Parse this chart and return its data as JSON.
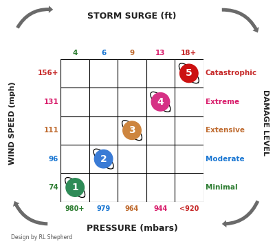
{
  "title_top": "STORM SURGE (ft)",
  "title_bottom": "PRESSURE (mbars)",
  "ylabel": "WIND SPEED (mph)",
  "ylabel_right": "DAMAGE LEVEL",
  "storm_surge_labels": [
    "4",
    "6",
    "9",
    "13",
    "18+"
  ],
  "storm_surge_colors": [
    "#2e7d32",
    "#1976d2",
    "#bf6a2e",
    "#d81b6a",
    "#c62828"
  ],
  "pressure_labels": [
    "980+",
    "979",
    "964",
    "944",
    "<920"
  ],
  "pressure_colors": [
    "#2e7d32",
    "#1976d2",
    "#bf6a2e",
    "#d81b6a",
    "#c62828"
  ],
  "wind_speed_labels": [
    "156+",
    "131",
    "111",
    "96",
    "74"
  ],
  "wind_speed_colors": [
    "#c62828",
    "#d81b6a",
    "#bf6a2e",
    "#1976d2",
    "#2e7d32"
  ],
  "damage_labels": [
    "Catastrophic",
    "Extreme",
    "Extensive",
    "Moderate",
    "Minimal"
  ],
  "damage_colors": [
    "#c62828",
    "#d81b6a",
    "#bf6a2e",
    "#1976d2",
    "#2e7d32"
  ],
  "circles": [
    {
      "num": "1",
      "col": 0,
      "row": 4,
      "color": "#2e8b57",
      "text_color": "white"
    },
    {
      "num": "2",
      "col": 1,
      "row": 3,
      "color": "#3a7bd5",
      "text_color": "white"
    },
    {
      "num": "3",
      "col": 2,
      "row": 2,
      "color": "#cd853f",
      "text_color": "white"
    },
    {
      "num": "4",
      "col": 3,
      "row": 1,
      "color": "#d63085",
      "text_color": "white"
    },
    {
      "num": "5",
      "col": 4,
      "row": 0,
      "color": "#cc1111",
      "text_color": "white"
    }
  ],
  "grid_n_cols": 5,
  "grid_n_rows": 5,
  "background_color": "#ffffff",
  "footnote": "Design by RL Shepherd"
}
